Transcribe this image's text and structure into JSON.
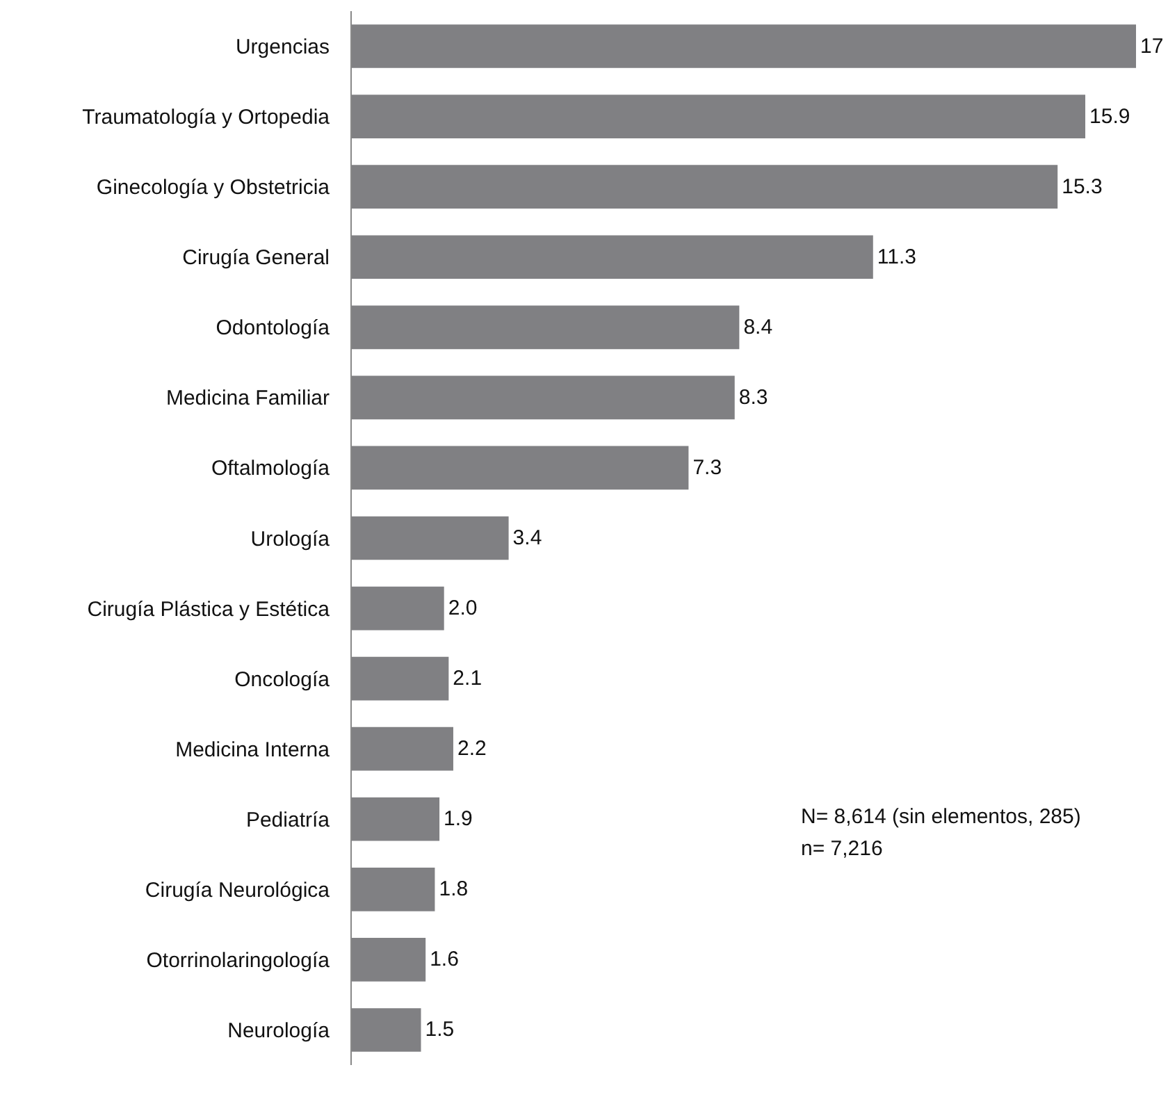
{
  "chart_data": {
    "type": "bar",
    "orientation": "horizontal",
    "categories": [
      "Urgencias",
      "Traumatología y Ortopedia",
      "Ginecología y Obstetricia",
      "Cirugía General",
      "Odontología",
      "Medicina Familiar",
      "Oftalmología",
      "Urología",
      "Cirugía Plástica y Estética",
      "Oncología",
      "Medicina Interna",
      "Pediatría",
      "Cirugía Neurológica",
      "Otorrinolaringología",
      "Neurología"
    ],
    "values": [
      17,
      15.9,
      15.3,
      11.3,
      8.4,
      8.3,
      7.3,
      3.4,
      2.0,
      2.1,
      2.2,
      1.9,
      1.8,
      1.6,
      1.5
    ],
    "value_labels": [
      "17",
      "15.9",
      "15.3",
      "11.3",
      "8.4",
      "8.3",
      "7.3",
      "3.4",
      "2.0",
      "2.1",
      "2.2",
      "1.9",
      "1.8",
      "1.6",
      "1.5"
    ],
    "color": "#808083",
    "annotations": [
      "N= 8,614 (sin elementos, 285)",
      "n= 7,216"
    ],
    "legend": false
  }
}
